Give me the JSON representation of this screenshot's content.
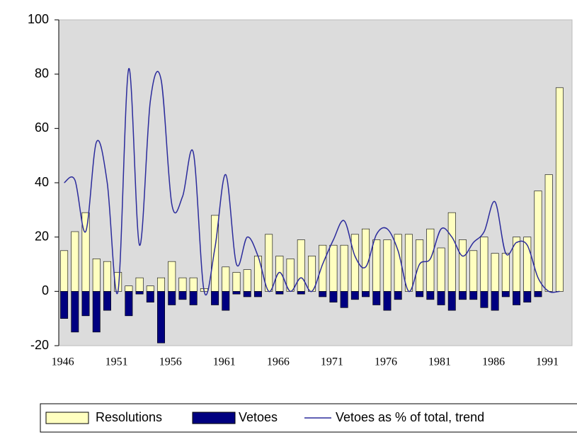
{
  "chart_data": {
    "type": "bar",
    "categories": [
      "1946",
      null,
      null,
      null,
      null,
      "1951",
      null,
      null,
      null,
      null,
      "1956",
      null,
      null,
      null,
      null,
      "1961",
      null,
      null,
      null,
      null,
      "1966",
      null,
      null,
      null,
      null,
      "1971",
      null,
      null,
      null,
      null,
      "1976",
      null,
      null,
      null,
      null,
      "1981",
      null,
      null,
      null,
      null,
      "1986",
      null,
      null,
      null,
      null,
      "1991",
      null
    ],
    "series": [
      {
        "name": "Resolutions",
        "type": "bar",
        "color": "#ffffc0",
        "values": [
          15,
          22,
          29,
          12,
          11,
          7,
          2,
          5,
          2,
          5,
          11,
          5,
          5,
          1,
          28,
          9,
          7,
          8,
          13,
          21,
          13,
          12,
          19,
          13,
          17,
          17,
          17,
          21,
          23,
          19,
          19,
          21,
          21,
          19,
          23,
          16,
          29,
          19,
          15,
          20,
          14,
          14,
          20,
          20,
          37,
          43,
          75
        ]
      },
      {
        "name": "Vetoes",
        "type": "bar",
        "color": "#000080",
        "values": [
          -10,
          -15,
          -9,
          -15,
          -7,
          0,
          -9,
          -1,
          -4,
          -19,
          -5,
          -3,
          -5,
          0,
          -5,
          -7,
          -1,
          -2,
          -2,
          0,
          -1,
          0,
          -1,
          0,
          -2,
          -4,
          -6,
          -3,
          -2,
          -5,
          -7,
          -3,
          0,
          -2,
          -3,
          -5,
          -7,
          -3,
          -3,
          -6,
          -7,
          -2,
          -5,
          -4,
          -2,
          0,
          0
        ]
      },
      {
        "name": "Vetoes as % of total, trend",
        "type": "line",
        "color": "#2b2b9c",
        "values": [
          40,
          41,
          22,
          55,
          40,
          0,
          82,
          17,
          70,
          78,
          32,
          35,
          51,
          0,
          16,
          43,
          10,
          20,
          13,
          0,
          7,
          0,
          5,
          0,
          10,
          19,
          26,
          13,
          9,
          21,
          23,
          15,
          0,
          10,
          12,
          23,
          20,
          13,
          18,
          22,
          33,
          14,
          18,
          17,
          5,
          0,
          0
        ]
      }
    ],
    "ylim": [
      -20,
      100
    ],
    "yticks": [
      -20,
      0,
      20,
      40,
      60,
      80,
      100
    ],
    "legend": "bottom"
  }
}
